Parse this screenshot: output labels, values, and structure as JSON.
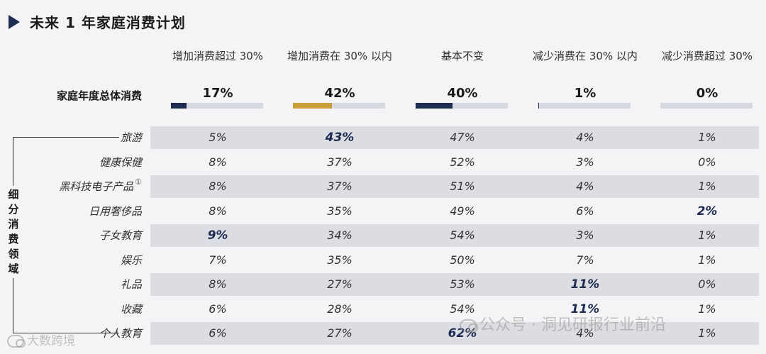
{
  "title": "未来 1 年家庭消费计划",
  "columns": [
    "增加消费超过 30%",
    "增加消费在 30% 以内",
    "基本不变",
    "减少消费在 30% 以内",
    "减少消费超过 30%"
  ],
  "total_label": "家庭年度总体消费",
  "side_label": "细分消费领域",
  "footnote_mark": "①",
  "colors": {
    "navy": "#1f2c52",
    "gold": "#c9a036",
    "band": "#dcdde3",
    "track": "#d7d9e0"
  },
  "watermarks": {
    "right": "公众号 · 洞见研报行业前沿",
    "left": "大数跨境"
  },
  "chart_data": {
    "type": "table",
    "total": {
      "label": "家庭年度总体消费",
      "values": [
        17,
        42,
        40,
        1,
        0
      ],
      "labels": [
        "17%",
        "42%",
        "40%",
        "1%",
        "0%"
      ],
      "bar_colors": [
        "#1f2c52",
        "#c9a036",
        "#1f2c52",
        "#1f2c52",
        "#1f2c52"
      ]
    },
    "rows": [
      {
        "name": "旅游",
        "values": [
          "5%",
          "43%",
          "47%",
          "4%",
          "1%"
        ],
        "highlight": [
          1
        ]
      },
      {
        "name": "健康保健",
        "values": [
          "8%",
          "37%",
          "52%",
          "3%",
          "0%"
        ],
        "highlight": []
      },
      {
        "name": "黑科技电子产品",
        "values": [
          "8%",
          "37%",
          "51%",
          "4%",
          "1%"
        ],
        "highlight": [],
        "footnote": true
      },
      {
        "name": "日用奢侈品",
        "values": [
          "8%",
          "35%",
          "49%",
          "6%",
          "2%"
        ],
        "highlight": [
          4
        ]
      },
      {
        "name": "子女教育",
        "values": [
          "9%",
          "34%",
          "54%",
          "3%",
          "1%"
        ],
        "highlight": [
          0
        ]
      },
      {
        "name": "娱乐",
        "values": [
          "7%",
          "35%",
          "50%",
          "7%",
          "1%"
        ],
        "highlight": []
      },
      {
        "name": "礼品",
        "values": [
          "8%",
          "27%",
          "53%",
          "11%",
          "0%"
        ],
        "highlight": [
          3
        ]
      },
      {
        "name": "收藏",
        "values": [
          "6%",
          "28%",
          "54%",
          "11%",
          "1%"
        ],
        "highlight": [
          3
        ]
      },
      {
        "name": "个人教育",
        "values": [
          "6%",
          "27%",
          "62%",
          "4%",
          "1%"
        ],
        "highlight": [
          2
        ]
      }
    ]
  }
}
